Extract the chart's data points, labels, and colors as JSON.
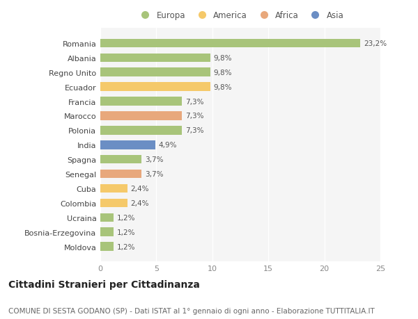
{
  "categories": [
    "Romania",
    "Albania",
    "Regno Unito",
    "Ecuador",
    "Francia",
    "Marocco",
    "Polonia",
    "India",
    "Spagna",
    "Senegal",
    "Cuba",
    "Colombia",
    "Ucraina",
    "Bosnia-Erzegovina",
    "Moldova"
  ],
  "values": [
    23.2,
    9.8,
    9.8,
    9.8,
    7.3,
    7.3,
    7.3,
    4.9,
    3.7,
    3.7,
    2.4,
    2.4,
    1.2,
    1.2,
    1.2
  ],
  "labels": [
    "23,2%",
    "9,8%",
    "9,8%",
    "9,8%",
    "7,3%",
    "7,3%",
    "7,3%",
    "4,9%",
    "3,7%",
    "3,7%",
    "2,4%",
    "2,4%",
    "1,2%",
    "1,2%",
    "1,2%"
  ],
  "colors": [
    "#a8c47a",
    "#a8c47a",
    "#a8c47a",
    "#f5c96a",
    "#a8c47a",
    "#e8a87c",
    "#a8c47a",
    "#6b8ec4",
    "#a8c47a",
    "#e8a87c",
    "#f5c96a",
    "#f5c96a",
    "#a8c47a",
    "#a8c47a",
    "#a8c47a"
  ],
  "legend_labels": [
    "Europa",
    "America",
    "Africa",
    "Asia"
  ],
  "legend_colors": [
    "#a8c47a",
    "#f5c96a",
    "#e8a87c",
    "#6b8ec4"
  ],
  "title": "Cittadini Stranieri per Cittadinanza",
  "subtitle": "COMUNE DI SESTA GODANO (SP) - Dati ISTAT al 1° gennaio di ogni anno - Elaborazione TUTTITALIA.IT",
  "xlim": [
    0,
    25
  ],
  "xticks": [
    0,
    5,
    10,
    15,
    20,
    25
  ],
  "bg_color": "#ffffff",
  "plot_bg_color": "#f5f5f5",
  "grid_color": "#ffffff",
  "bar_height": 0.6,
  "title_fontsize": 10,
  "subtitle_fontsize": 7.5,
  "label_fontsize": 7.5,
  "tick_fontsize": 8,
  "legend_fontsize": 8.5
}
